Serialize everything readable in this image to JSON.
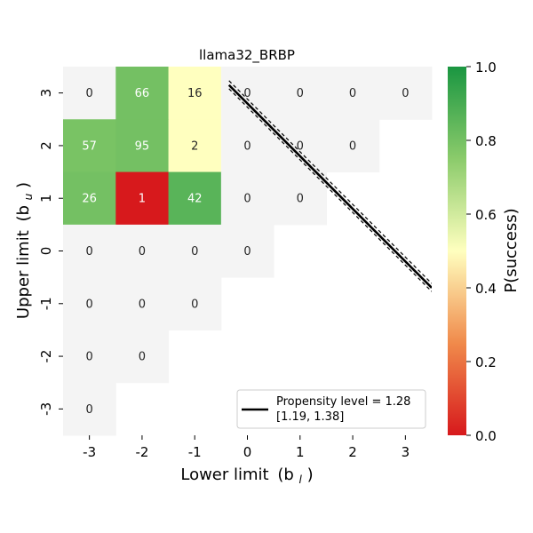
{
  "chart_data": {
    "type": "heatmap",
    "title": "llama32_BRBP",
    "xlabel": "Lower limit",
    "xlabel_sym": "(b",
    "xlabel_sub": "l",
    "xlabel_end": ")",
    "ylabel": "Upper limit",
    "ylabel_sym": "(b",
    "ylabel_sub": "u",
    "ylabel_end": ")",
    "x_ticks": [
      "-3",
      "-2",
      "-1",
      "0",
      "1",
      "2",
      "3"
    ],
    "y_ticks": [
      "3",
      "2",
      "1",
      "0",
      "-1",
      "-2",
      "-3"
    ],
    "x_values": [
      -3,
      -2,
      -1,
      0,
      1,
      2,
      3
    ],
    "y_values": [
      3,
      2,
      1,
      0,
      -1,
      -2,
      -3
    ],
    "cells": [
      {
        "x": -3,
        "y": 3,
        "label": "0",
        "p": null
      },
      {
        "x": -2,
        "y": 3,
        "label": "66",
        "p": 0.8
      },
      {
        "x": -1,
        "y": 3,
        "label": "16",
        "p": 0.5
      },
      {
        "x": 0,
        "y": 3,
        "label": "0",
        "p": null
      },
      {
        "x": 1,
        "y": 3,
        "label": "0",
        "p": null
      },
      {
        "x": 2,
        "y": 3,
        "label": "0",
        "p": null
      },
      {
        "x": 3,
        "y": 3,
        "label": "0",
        "p": null
      },
      {
        "x": -3,
        "y": 2,
        "label": "57",
        "p": 0.79
      },
      {
        "x": -2,
        "y": 2,
        "label": "95",
        "p": 0.8
      },
      {
        "x": -1,
        "y": 2,
        "label": "2",
        "p": 0.5
      },
      {
        "x": 0,
        "y": 2,
        "label": "0",
        "p": null
      },
      {
        "x": 1,
        "y": 2,
        "label": "0",
        "p": null
      },
      {
        "x": 2,
        "y": 2,
        "label": "0",
        "p": null
      },
      {
        "x": -3,
        "y": 1,
        "label": "26",
        "p": 0.8
      },
      {
        "x": -2,
        "y": 1,
        "label": "1",
        "p": 0.0
      },
      {
        "x": -1,
        "y": 1,
        "label": "42",
        "p": 0.86
      },
      {
        "x": 0,
        "y": 1,
        "label": "0",
        "p": null
      },
      {
        "x": 1,
        "y": 1,
        "label": "0",
        "p": null
      },
      {
        "x": -3,
        "y": 0,
        "label": "0",
        "p": null
      },
      {
        "x": -2,
        "y": 0,
        "label": "0",
        "p": null
      },
      {
        "x": -1,
        "y": 0,
        "label": "0",
        "p": null
      },
      {
        "x": 0,
        "y": 0,
        "label": "0",
        "p": null
      },
      {
        "x": -3,
        "y": -1,
        "label": "0",
        "p": null
      },
      {
        "x": -2,
        "y": -1,
        "label": "0",
        "p": null
      },
      {
        "x": -1,
        "y": -1,
        "label": "0",
        "p": null
      },
      {
        "x": -3,
        "y": -2,
        "label": "0",
        "p": null
      },
      {
        "x": -2,
        "y": -2,
        "label": "0",
        "p": null
      },
      {
        "x": -3,
        "y": -3,
        "label": "0",
        "p": null
      }
    ],
    "propensity_line": {
      "level": 1.28,
      "ci": [
        1.19,
        1.38
      ],
      "legend_label_1": "Propensity level = 1.28",
      "legend_label_2": "[1.19, 1.38]",
      "legend_position": "lower-right"
    },
    "colorbar": {
      "label": "P(success)",
      "range": [
        0.0,
        1.0
      ],
      "ticks": [
        "0.0",
        "0.2",
        "0.4",
        "0.6",
        "0.8",
        "1.0"
      ],
      "tick_values": [
        0.0,
        0.2,
        0.4,
        0.6,
        0.8,
        1.0
      ],
      "colormap": "RdYlGn"
    },
    "colors": {
      "empty_cell": "#f4f4f4",
      "line": "#000000"
    }
  }
}
